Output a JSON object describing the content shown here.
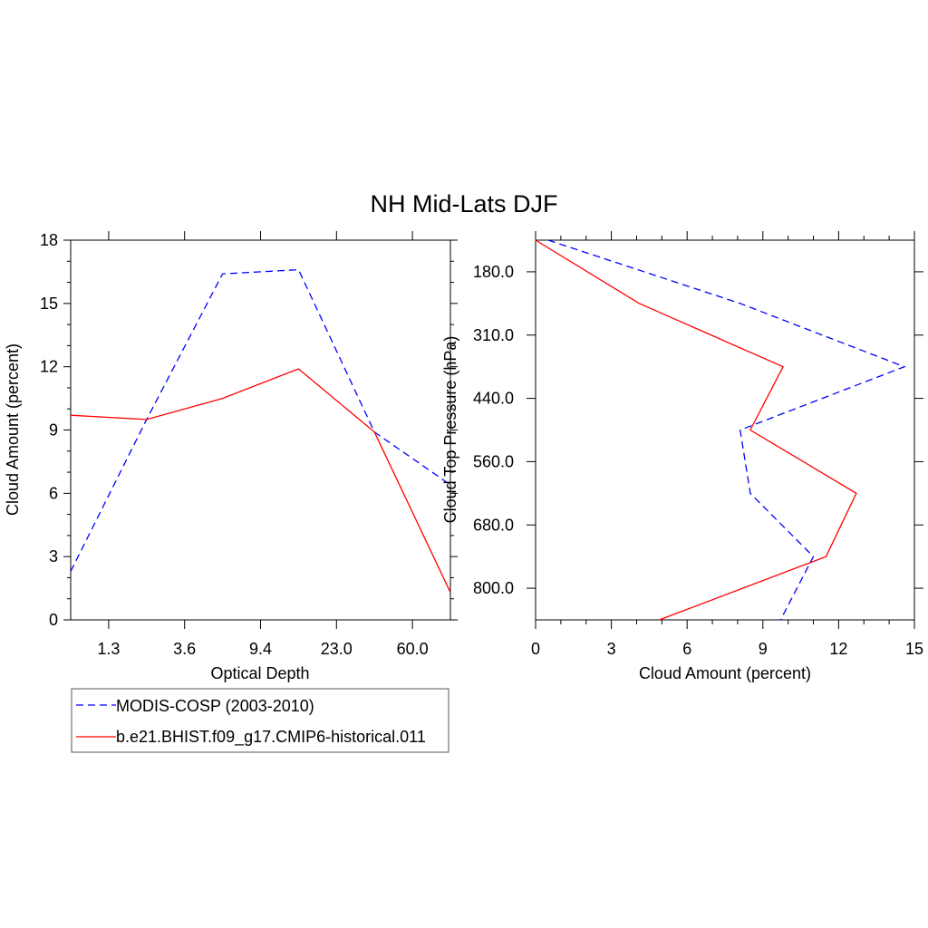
{
  "title": "NH Mid-Lats DJF",
  "colors": {
    "obs": "#0000ff",
    "model": "#ff0000",
    "axis": "#000000"
  },
  "legend": {
    "items": [
      {
        "label": "MODIS-COSP (2003-2010)",
        "color": "#0000ff",
        "dash": true
      },
      {
        "label": "b.e21.BHIST.f09_g17.CMIP6-historical.011",
        "color": "#ff0000",
        "dash": false
      }
    ]
  },
  "chart_data": [
    {
      "type": "line",
      "xlabel": "Optical Depth",
      "ylabel": "Cloud Amount (percent)",
      "x_ticks": [
        "1.3",
        "3.6",
        "9.4",
        "23.0",
        "60.0"
      ],
      "xlim": [
        0,
        5
      ],
      "ylim": [
        0,
        18
      ],
      "y_ticks": [
        0,
        3,
        6,
        9,
        12,
        15,
        18
      ],
      "x": [
        0,
        1,
        2,
        3,
        4,
        5
      ],
      "series": [
        {
          "name": "MODIS-COSP (2003-2010)",
          "values": [
            2.3,
            9.5,
            16.4,
            16.6,
            8.9,
            6.4
          ]
        },
        {
          "name": "b.e21.BHIST.f09_g17.CMIP6-historical.011",
          "values": [
            9.7,
            9.5,
            10.5,
            11.9,
            8.9,
            1.3
          ]
        }
      ]
    },
    {
      "type": "line",
      "xlabel": "Cloud Amount (percent)",
      "ylabel": "Cloud Top Pressure (hPa)",
      "xlim": [
        0,
        15
      ],
      "x_ticks": [
        0,
        3,
        6,
        9,
        12,
        15
      ],
      "y_tick_labels": [
        "180.0",
        "310.0",
        "440.0",
        "560.0",
        "680.0",
        "800.0"
      ],
      "y_tick_levels": [
        0.5,
        1.5,
        2.5,
        3.5,
        4.5,
        5.5
      ],
      "ylim_levels": [
        0,
        6
      ],
      "levels": [
        0,
        1,
        2,
        3,
        4,
        5,
        6
      ],
      "series": [
        {
          "name": "MODIS-COSP (2003-2010)",
          "values": [
            0.5,
            8.1,
            14.6,
            8.1,
            8.5,
            11.0,
            9.7
          ]
        },
        {
          "name": "b.e21.BHIST.f09_g17.CMIP6-historical.011",
          "values": [
            0.0,
            4.1,
            9.8,
            8.5,
            12.7,
            11.5,
            4.9
          ]
        }
      ]
    }
  ]
}
